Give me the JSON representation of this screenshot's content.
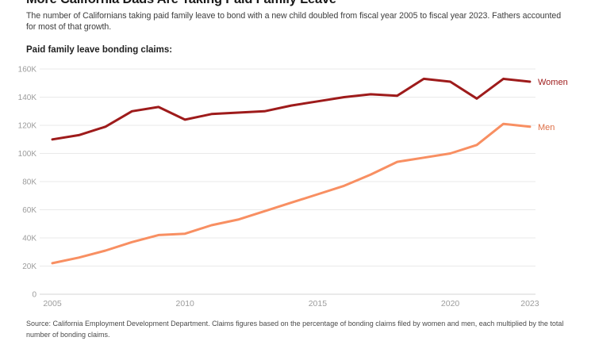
{
  "header": {
    "title": "More California Dads Are Taking Paid Family Leave",
    "subtitle": "The number of Californians taking paid family leave to bond with a new child doubled from fiscal year 2005 to fiscal year 2023. Fathers accounted for most of that growth.",
    "chart_label": "Paid family leave bonding claims:"
  },
  "chart_data": {
    "type": "line",
    "title": "Paid family leave bonding claims",
    "x": [
      2005,
      2006,
      2007,
      2008,
      2009,
      2010,
      2011,
      2012,
      2013,
      2014,
      2015,
      2016,
      2017,
      2018,
      2019,
      2020,
      2021,
      2022,
      2023
    ],
    "series": [
      {
        "name": "Women",
        "color": "#9e1b1b",
        "label_color": "#9e1b1b",
        "values": [
          110000,
          113000,
          119000,
          130000,
          133000,
          124000,
          128000,
          129000,
          130000,
          134000,
          137000,
          140000,
          142000,
          141000,
          153000,
          151000,
          139000,
          153000,
          151000
        ]
      },
      {
        "name": "Men",
        "color": "#f88f62",
        "label_color": "#de6f47",
        "values": [
          22000,
          26000,
          31000,
          37000,
          42000,
          43000,
          49000,
          53000,
          59000,
          65000,
          71000,
          77000,
          85000,
          94000,
          97000,
          100000,
          106000,
          121000,
          119000
        ]
      }
    ],
    "xlabel": "",
    "ylabel": "",
    "ylim": [
      0,
      160000
    ],
    "yticks": [
      {
        "value": 160000,
        "label": "160K"
      },
      {
        "value": 140000,
        "label": "140K"
      },
      {
        "value": 120000,
        "label": "120K"
      },
      {
        "value": 100000,
        "label": "100K"
      },
      {
        "value": 80000,
        "label": "80K"
      },
      {
        "value": 60000,
        "label": "60K"
      },
      {
        "value": 40000,
        "label": "40K"
      },
      {
        "value": 20000,
        "label": "20K"
      },
      {
        "value": 0,
        "label": "0"
      }
    ],
    "xticks": [
      {
        "value": 2005,
        "label": "2005"
      },
      {
        "value": 2010,
        "label": "2010"
      },
      {
        "value": 2015,
        "label": "2015"
      },
      {
        "value": 2020,
        "label": "2020"
      },
      {
        "value": 2023,
        "label": "2023"
      }
    ],
    "grid": "horizontal",
    "grid_color": "#e9e9e9",
    "zero_line_color": "#d6d6d6",
    "tick_label_color": "#9c9c9c",
    "legend_position": "line-end-labels"
  },
  "footer": {
    "source": "Source: California Employment Development Department. Claims figures based on the percentage of bonding claims filed by women and men, each multiplied by the total number of bonding claims."
  }
}
